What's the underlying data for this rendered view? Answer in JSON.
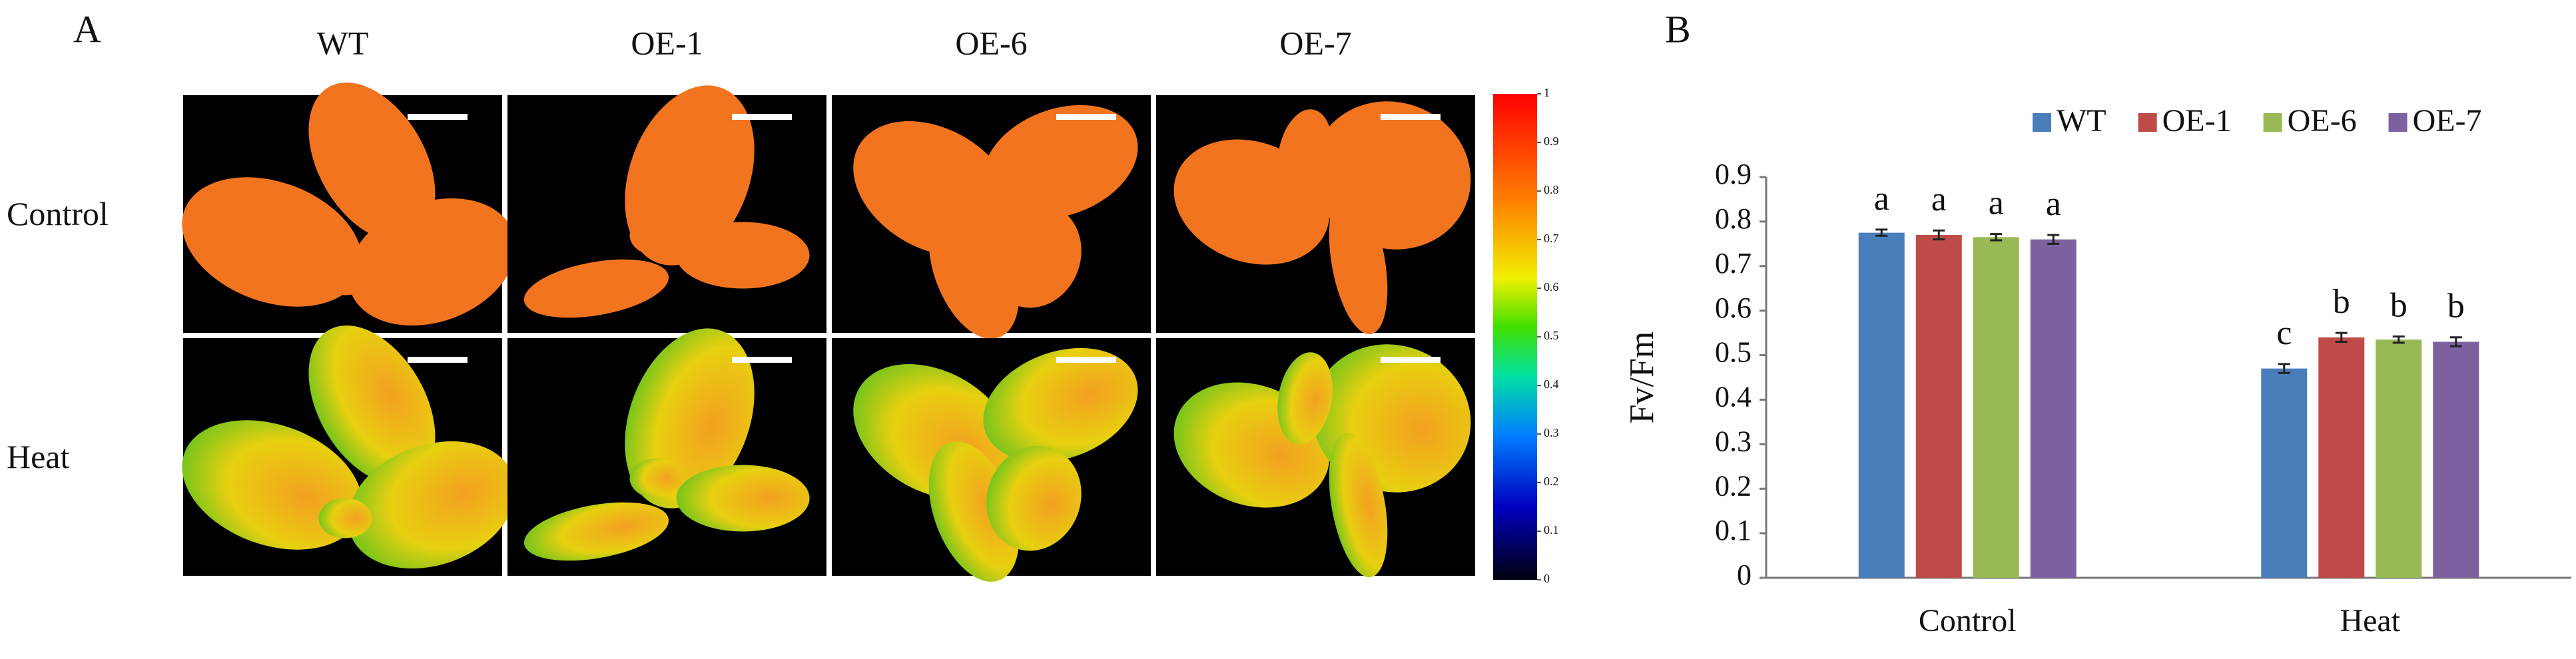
{
  "panel_a": {
    "label": "A",
    "columns": [
      "WT",
      "OE-1",
      "OE-6",
      "OE-7"
    ],
    "rows": [
      "Control",
      "Heat"
    ],
    "colorbar_ticks": [
      0,
      0.1,
      0.2,
      0.3,
      0.4,
      0.5,
      0.6,
      0.7,
      0.8,
      0.9,
      1
    ]
  },
  "chart_data": {
    "type": "bar",
    "panel_label": "B",
    "ylabel": "Fv/Fm",
    "categories": [
      "Control",
      "Heat"
    ],
    "series": [
      {
        "name": "WT",
        "color": "#4a7ebb",
        "values": [
          0.775,
          0.47
        ],
        "errors": [
          0.007,
          0.01
        ],
        "letters": [
          "a",
          "c"
        ]
      },
      {
        "name": "OE-1",
        "color": "#be4b48",
        "values": [
          0.77,
          0.54
        ],
        "errors": [
          0.01,
          0.01
        ],
        "letters": [
          "a",
          "b"
        ]
      },
      {
        "name": "OE-6",
        "color": "#98b954",
        "values": [
          0.765,
          0.535
        ],
        "errors": [
          0.007,
          0.007
        ],
        "letters": [
          "a",
          "b"
        ]
      },
      {
        "name": "OE-7",
        "color": "#7d60a0",
        "values": [
          0.76,
          0.53
        ],
        "errors": [
          0.01,
          0.01
        ],
        "letters": [
          "a",
          "b"
        ]
      }
    ],
    "ylim": [
      0,
      0.9
    ],
    "yticks": [
      0,
      0.1,
      0.2,
      0.3,
      0.4,
      0.5,
      0.6,
      0.7,
      0.8,
      0.9
    ],
    "legend": "top-right"
  }
}
